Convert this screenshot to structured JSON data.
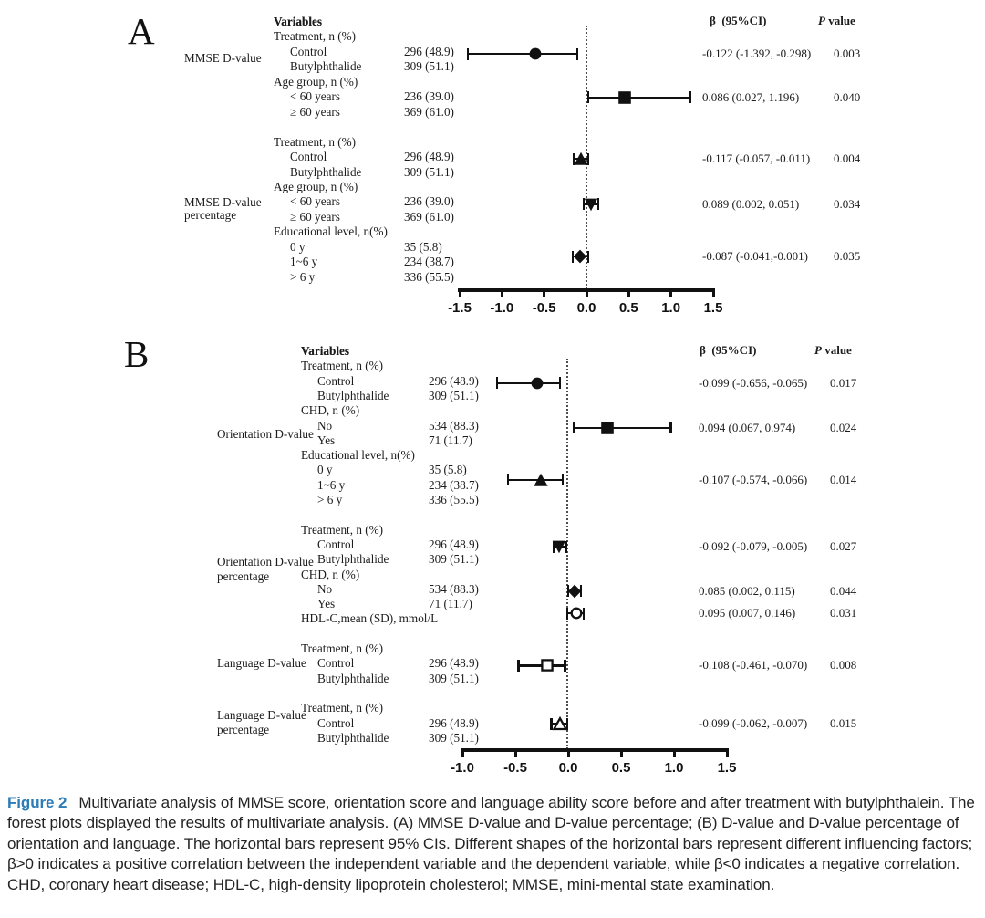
{
  "colors": {
    "accent_blue": "#2d7cb5",
    "ink": "#1b1b1b"
  },
  "figure_caption": {
    "label": "Figure 2",
    "text": "Multivariate analysis of MMSE score, orientation score and language ability score before and after treatment with butylphthalein. The forest plots displayed the results of multivariate analysis. (A) MMSE D-value and D-value percentage; (B) D-value and D-value percentage of orientation and language. The horizontal bars represent 95% CIs. Different shapes of the horizontal bars represent different influencing factors; β>0 indicates a positive correlation between the independent variable and the dependent variable, while β<0 indicates a negative correlation. CHD, coronary heart disease; HDL-C, high-density lipoprotein cholesterol; MMSE, mini-mental state examination."
  },
  "chart_data": [
    {
      "type": "forest",
      "panel": "A",
      "headers": {
        "variables": "Variables",
        "beta": "β  (95%CI)",
        "p_italic": "P",
        "p_rest": " value"
      },
      "axis": {
        "range": [
          -1.5,
          1.5
        ],
        "tick_labels": [
          "-1.5",
          "-1.0",
          "-0.5",
          "0.0",
          "0.5",
          "1.0",
          "1.5"
        ],
        "zero_line": 0.0,
        "grid": false
      },
      "side_labels": [
        {
          "line": 2.37,
          "text": "MMSE D-value"
        },
        {
          "line": 11.97,
          "text": "MMSE D-value"
        },
        {
          "line": 12.82,
          "text": "percentage"
        }
      ],
      "rows": [
        {
          "line": 0,
          "text": "Variables",
          "indent": 0,
          "bold": true
        },
        {
          "line": 1,
          "text": "Treatment, n (%)",
          "indent": 0
        },
        {
          "line": 2,
          "text": "Control",
          "indent": 1,
          "count": "296 (48.9)"
        },
        {
          "line": 3,
          "text": "Butylphthalide",
          "indent": 1,
          "count": "309 (51.1)"
        },
        {
          "line": 4,
          "text": "Age group, n (%)",
          "indent": 0
        },
        {
          "line": 5,
          "text": "< 60 years",
          "indent": 1,
          "count": "236 (39.0)"
        },
        {
          "line": 6,
          "text": "≥ 60 years",
          "indent": 1,
          "count": "369 (61.0)"
        },
        {
          "line": 8,
          "text": "Treatment, n (%)",
          "indent": 0
        },
        {
          "line": 9,
          "text": "Control",
          "indent": 1,
          "count": "296 (48.9)"
        },
        {
          "line": 10,
          "text": "Butylphthalide",
          "indent": 1,
          "count": "309 (51.1)"
        },
        {
          "line": 11,
          "text": "Age group, n (%)",
          "indent": 0
        },
        {
          "line": 12,
          "text": "< 60 years",
          "indent": 1,
          "count": "236 (39.0)"
        },
        {
          "line": 13,
          "text": "≥ 60 years",
          "indent": 1,
          "count": "369 (61.0)"
        },
        {
          "line": 14,
          "text": "Educational level, n(%)",
          "indent": 0
        },
        {
          "line": 15,
          "text": "0 y",
          "indent": 1,
          "count": "35 (5.8)"
        },
        {
          "line": 16,
          "text": "1~6 y",
          "indent": 1,
          "count": "234 (38.7)"
        },
        {
          "line": 17,
          "text": "> 6 y",
          "indent": 1,
          "count": "336 (55.5)"
        }
      ],
      "estimates": [
        {
          "line": 2.5,
          "outcome": "MMSE D-value",
          "variable": "Treatment",
          "shape": "circle",
          "ci_draw": [
            -1.4,
            -0.6,
            -0.11
          ],
          "beta_ci": "-0.122 (-1.392, -0.298)",
          "p": "0.003"
        },
        {
          "line": 5.4,
          "outcome": "MMSE D-value",
          "variable": "Age group",
          "shape": "square",
          "ci_draw": [
            0.02,
            0.45,
            1.23
          ],
          "beta_ci": "0.086 (0.027, 1.196)",
          "p": "0.040"
        },
        {
          "line": 9.5,
          "outcome": "MMSE D-value percentage",
          "variable": "Treatment",
          "shape": "triangle",
          "ci_draw": [
            -0.15,
            -0.07,
            0.02
          ],
          "beta_ci": "-0.117 (-0.057, -0.011)",
          "p": "0.004"
        },
        {
          "line": 12.5,
          "outcome": "MMSE D-value percentage",
          "variable": "Age group",
          "shape": "triangle-down",
          "ci_draw": [
            -0.03,
            0.05,
            0.14
          ],
          "beta_ci": "0.089 (0.002, 0.051)",
          "p": "0.034"
        },
        {
          "line": 16,
          "outcome": "MMSE D-value percentage",
          "variable": "Educational level 1~6 y",
          "shape": "diamond",
          "ci_draw": [
            -0.16,
            -0.075,
            0.02
          ],
          "beta_ci": "-0.087 (-0.041,-0.001)",
          "p": "0.035"
        }
      ]
    },
    {
      "type": "forest",
      "panel": "B",
      "headers": {
        "variables": "Variables",
        "beta": "β  (95%CI)",
        "p_italic": "P",
        "p_rest": " value"
      },
      "axis": {
        "range": [
          -1.0,
          1.5
        ],
        "tick_labels": [
          "-1.0",
          "-0.5",
          "0.0",
          "0.5",
          "1.0",
          "1.5"
        ],
        "zero_line": 0.0,
        "grid": false
      },
      "side_labels": [
        {
          "line": 5.55,
          "text": "Orientation D-value"
        },
        {
          "line": 14.1,
          "text": "Orientation D-value"
        },
        {
          "line": 15.1,
          "text": "percentage"
        },
        {
          "line": 20.9,
          "text": "Language D-value"
        },
        {
          "line": 24.4,
          "text": "Language D-value"
        },
        {
          "line": 25.4,
          "text": "percentage"
        }
      ],
      "rows": [
        {
          "line": 0,
          "text": "Variables",
          "indent": 0,
          "bold": true
        },
        {
          "line": 1,
          "text": "Treatment, n (%)",
          "indent": 0
        },
        {
          "line": 2,
          "text": "Control",
          "indent": 1,
          "count": "296 (48.9)"
        },
        {
          "line": 3,
          "text": "Butylphthalide",
          "indent": 1,
          "count": "309 (51.1)"
        },
        {
          "line": 4,
          "text": "CHD, n (%)",
          "indent": 0
        },
        {
          "line": 5,
          "text": "No",
          "indent": 1,
          "count": "534 (88.3)"
        },
        {
          "line": 6,
          "text": "Yes",
          "indent": 1,
          "count": "71 (11.7)"
        },
        {
          "line": 7,
          "text": "Educational level, n(%)",
          "indent": 0
        },
        {
          "line": 8,
          "text": "0 y",
          "indent": 1,
          "count": "35 (5.8)"
        },
        {
          "line": 9,
          "text": "1~6 y",
          "indent": 1,
          "count": "234 (38.7)"
        },
        {
          "line": 10,
          "text": "> 6 y",
          "indent": 1,
          "count": "336 (55.5)"
        },
        {
          "line": 12,
          "text": "Treatment, n (%)",
          "indent": 0
        },
        {
          "line": 13,
          "text": "Control",
          "indent": 1,
          "count": "296 (48.9)"
        },
        {
          "line": 14,
          "text": "Butylphthalide",
          "indent": 1,
          "count": "309 (51.1)"
        },
        {
          "line": 15,
          "text": "CHD, n (%)",
          "indent": 0
        },
        {
          "line": 16,
          "text": "No",
          "indent": 1,
          "count": "534 (88.3)"
        },
        {
          "line": 17,
          "text": "Yes",
          "indent": 1,
          "count": "71 (11.7)"
        },
        {
          "line": 18,
          "text": "HDL-C,mean (SD), mmol/L",
          "indent": 0
        },
        {
          "line": 20,
          "text": "Treatment, n (%)",
          "indent": 0
        },
        {
          "line": 21,
          "text": "Control",
          "indent": 1,
          "count": "296 (48.9)"
        },
        {
          "line": 22,
          "text": "Butylphthalide",
          "indent": 1,
          "count": "309 (51.1)"
        },
        {
          "line": 24,
          "text": "Treatment, n (%)",
          "indent": 0
        },
        {
          "line": 25,
          "text": "Control",
          "indent": 1,
          "count": "296 (48.9)"
        },
        {
          "line": 26,
          "text": "Butylphthalide",
          "indent": 1,
          "count": "309 (51.1)"
        }
      ],
      "estimates": [
        {
          "line": 2.5,
          "outcome": "Orientation D-value",
          "variable": "Treatment",
          "shape": "circle",
          "ci_draw": [
            -0.67,
            -0.29,
            -0.08
          ],
          "beta_ci": "-0.099 (-0.656, -0.065)",
          "p": "0.017"
        },
        {
          "line": 5.5,
          "outcome": "Orientation D-value",
          "variable": "CHD",
          "shape": "square",
          "ci_draw": [
            0.05,
            0.37,
            0.97
          ],
          "beta_ci": "0.094 (0.067, 0.974)",
          "p": "0.024"
        },
        {
          "line": 9,
          "outcome": "Orientation D-value",
          "variable": "Educational level 1~6 y",
          "shape": "triangle",
          "ci_draw": [
            -0.57,
            -0.26,
            -0.05
          ],
          "beta_ci": "-0.107 (-0.574, -0.066)",
          "p": "0.014"
        },
        {
          "line": 13.5,
          "outcome": "Orientation D-value percentage",
          "variable": "Treatment",
          "shape": "triangle-down",
          "ci_draw": [
            -0.14,
            -0.085,
            -0.02
          ],
          "beta_ci": "-0.092 (-0.079, -0.005)",
          "p": "0.027"
        },
        {
          "line": 16.5,
          "outcome": "Orientation D-value percentage",
          "variable": "CHD",
          "shape": "diamond",
          "ci_draw": [
            0.0,
            0.06,
            0.12
          ],
          "beta_ci": "0.085 (0.002, 0.115)",
          "p": "0.044"
        },
        {
          "line": 18,
          "outcome": "Orientation D-value percentage",
          "variable": "HDL-C",
          "shape": "circle-open",
          "ci_draw": [
            -0.01,
            0.075,
            0.15
          ],
          "beta_ci": "0.095 (0.007, 0.146)",
          "p": "0.031"
        },
        {
          "line": 21.5,
          "outcome": "Language D-value",
          "variable": "Treatment",
          "shape": "square-open",
          "ci_draw": [
            -0.47,
            -0.2,
            -0.03
          ],
          "beta_ci": "-0.108 (-0.461, -0.070)",
          "p": "0.008"
        },
        {
          "line": 25.4,
          "outcome": "Language D-value percentage",
          "variable": "Treatment",
          "shape": "triangle-open",
          "ci_draw": [
            -0.16,
            -0.075,
            -0.01
          ],
          "beta_ci": "-0.099 (-0.062, -0.007)",
          "p": "0.015"
        }
      ]
    }
  ]
}
